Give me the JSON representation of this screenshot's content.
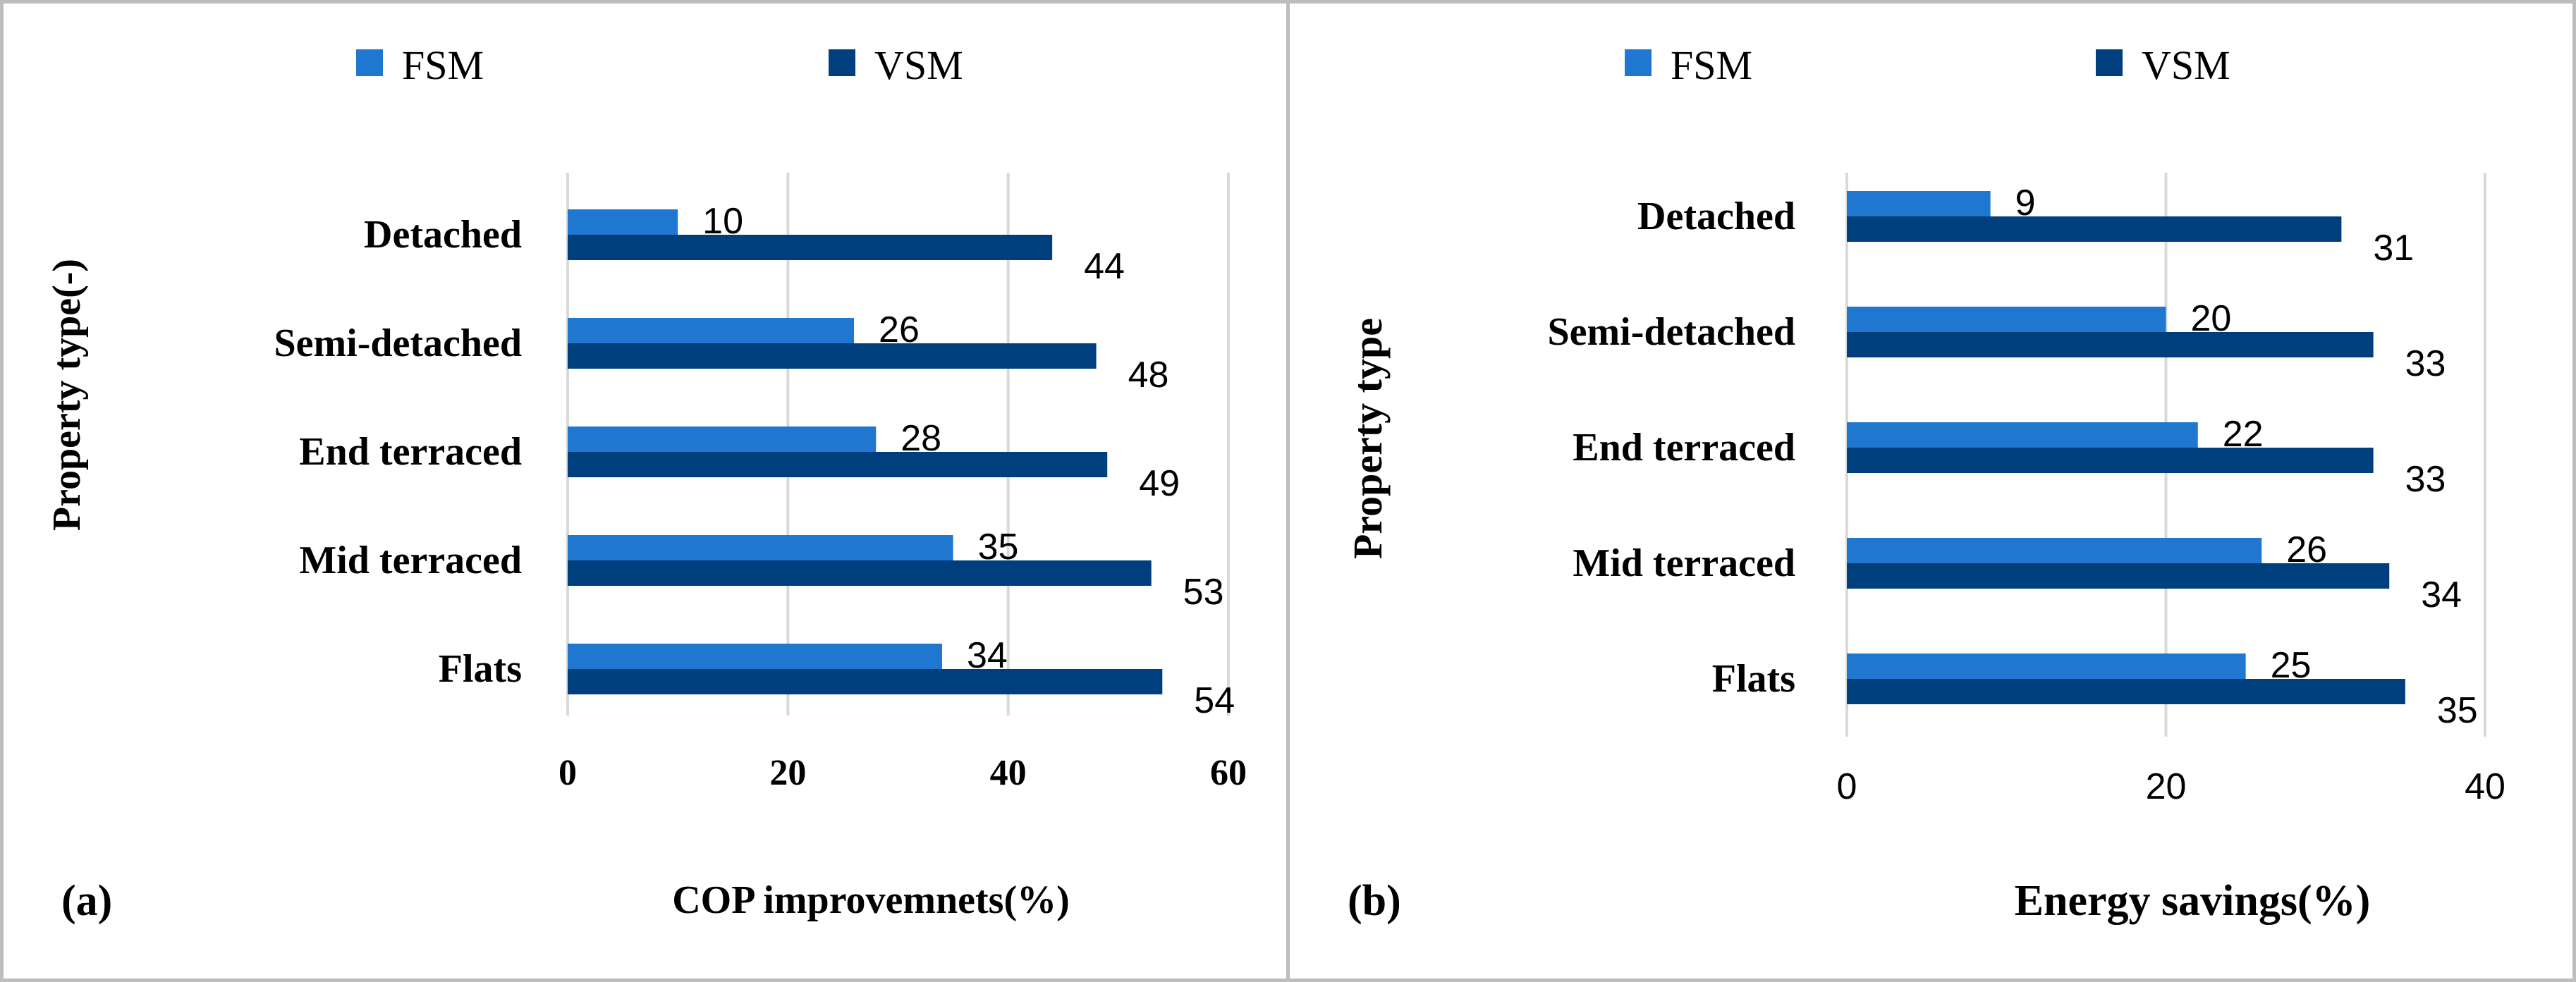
{
  "colors": {
    "FSM": "#1f77d0",
    "VSM": "#003f7d",
    "grid": "#d9d9d9",
    "border": "#bdbdbd"
  },
  "chart_data": [
    {
      "type": "bar",
      "orientation": "horizontal",
      "panel_label": "(a)",
      "categories": [
        "Detached",
        "Semi-detached",
        "End terraced",
        "Mid terraced",
        "Flats"
      ],
      "series": [
        {
          "name": "FSM",
          "values": [
            10,
            26,
            28,
            35,
            34
          ]
        },
        {
          "name": "VSM",
          "values": [
            44,
            48,
            49,
            53,
            54
          ]
        }
      ],
      "xlabel": "COP improvemnets(%)",
      "ylabel": "Property type(-)",
      "xlim": [
        0,
        60
      ],
      "xticks": [
        0,
        20,
        40,
        60
      ],
      "legend": "top",
      "grid": true,
      "data_labels": true
    },
    {
      "type": "bar",
      "orientation": "horizontal",
      "panel_label": "(b)",
      "categories": [
        "Detached",
        "Semi-detached",
        "End terraced",
        "Mid terraced",
        "Flats"
      ],
      "series": [
        {
          "name": "FSM",
          "values": [
            9,
            20,
            22,
            26,
            25
          ]
        },
        {
          "name": "VSM",
          "values": [
            31,
            33,
            33,
            34,
            35
          ]
        }
      ],
      "xlabel": "Energy savings(%)",
      "ylabel": "Property type",
      "xlim": [
        0,
        40
      ],
      "xticks": [
        0,
        20,
        40
      ],
      "legend": "top",
      "grid": true,
      "data_labels": true
    }
  ]
}
